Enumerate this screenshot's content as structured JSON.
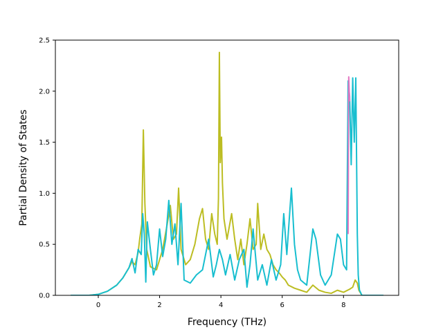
{
  "chart_data": {
    "type": "line",
    "title": "",
    "xlabel": "Frequency (THz)",
    "ylabel": "Partial Density of States",
    "xlim": [
      -1.4,
      9.8
    ],
    "ylim": [
      0,
      2.5
    ],
    "xticks": [
      0,
      2,
      4,
      6,
      8
    ],
    "yticks": [
      0.0,
      0.5,
      1.0,
      1.5,
      2.0,
      2.5
    ],
    "xtick_labels": [
      "0",
      "2",
      "4",
      "6",
      "8"
    ],
    "ytick_labels": [
      "0.0",
      "0.5",
      "1.0",
      "1.5",
      "2.0",
      "2.5"
    ],
    "grid": false,
    "legend": false,
    "series": [
      {
        "color": "#bcbd22",
        "x": [
          -0.9,
          -0.3,
          0.0,
          0.3,
          0.6,
          0.8,
          1.0,
          1.1,
          1.2,
          1.3,
          1.35,
          1.42,
          1.47,
          1.52,
          1.58,
          1.7,
          1.9,
          2.1,
          2.25,
          2.35,
          2.45,
          2.55,
          2.62,
          2.7,
          2.85,
          3.0,
          3.15,
          3.3,
          3.4,
          3.5,
          3.6,
          3.7,
          3.8,
          3.88,
          3.92,
          3.95,
          3.98,
          4.02,
          4.05,
          4.1,
          4.2,
          4.35,
          4.45,
          4.55,
          4.65,
          4.75,
          4.85,
          4.95,
          5.05,
          5.15,
          5.2,
          5.3,
          5.4,
          5.5,
          5.6,
          5.7,
          5.8,
          5.9,
          6.0,
          6.1,
          6.2,
          6.4,
          6.6,
          6.8,
          7.0,
          7.2,
          7.4,
          7.6,
          7.8,
          8.0,
          8.2,
          8.3,
          8.38,
          8.45,
          8.5,
          8.6,
          9.3
        ],
        "y": [
          0.0,
          0.0,
          0.01,
          0.04,
          0.1,
          0.17,
          0.27,
          0.33,
          0.3,
          0.42,
          0.55,
          0.7,
          1.62,
          0.9,
          0.45,
          0.28,
          0.25,
          0.45,
          0.7,
          0.88,
          0.55,
          0.6,
          1.05,
          0.45,
          0.3,
          0.35,
          0.5,
          0.75,
          0.85,
          0.55,
          0.45,
          0.8,
          0.6,
          0.5,
          0.95,
          2.38,
          1.3,
          1.55,
          1.1,
          0.75,
          0.55,
          0.8,
          0.55,
          0.35,
          0.55,
          0.3,
          0.5,
          0.75,
          0.45,
          0.5,
          0.9,
          0.45,
          0.6,
          0.45,
          0.4,
          0.3,
          0.25,
          0.22,
          0.18,
          0.15,
          0.1,
          0.07,
          0.05,
          0.03,
          0.1,
          0.05,
          0.03,
          0.02,
          0.05,
          0.03,
          0.06,
          0.08,
          0.15,
          0.12,
          0.05,
          0.0,
          0.0
        ]
      },
      {
        "color": "#17becf",
        "x": [
          -0.9,
          -0.3,
          0.0,
          0.3,
          0.6,
          0.8,
          1.0,
          1.1,
          1.2,
          1.3,
          1.4,
          1.45,
          1.5,
          1.55,
          1.6,
          1.7,
          1.8,
          1.9,
          2.0,
          2.1,
          2.2,
          2.3,
          2.4,
          2.5,
          2.6,
          2.7,
          2.8,
          3.0,
          3.2,
          3.4,
          3.6,
          3.75,
          3.85,
          3.95,
          4.05,
          4.15,
          4.3,
          4.45,
          4.6,
          4.75,
          4.85,
          4.95,
          5.05,
          5.2,
          5.35,
          5.5,
          5.65,
          5.8,
          5.95,
          6.05,
          6.15,
          6.3,
          6.4,
          6.5,
          6.6,
          6.8,
          7.0,
          7.1,
          7.25,
          7.4,
          7.6,
          7.8,
          7.9,
          8.0,
          8.1,
          8.15,
          8.2,
          8.25,
          8.3,
          8.35,
          8.4,
          8.45,
          8.48,
          8.52,
          8.6,
          9.3
        ],
        "y": [
          0.0,
          0.0,
          0.01,
          0.04,
          0.1,
          0.17,
          0.27,
          0.36,
          0.22,
          0.45,
          0.4,
          0.8,
          0.6,
          0.13,
          0.72,
          0.45,
          0.2,
          0.3,
          0.65,
          0.38,
          0.55,
          0.93,
          0.5,
          0.7,
          0.3,
          0.9,
          0.15,
          0.12,
          0.2,
          0.25,
          0.55,
          0.18,
          0.3,
          0.45,
          0.35,
          0.2,
          0.4,
          0.15,
          0.35,
          0.45,
          0.08,
          0.3,
          0.65,
          0.15,
          0.3,
          0.1,
          0.35,
          0.15,
          0.3,
          0.8,
          0.4,
          1.05,
          0.5,
          0.25,
          0.15,
          0.1,
          0.65,
          0.55,
          0.2,
          0.1,
          0.2,
          0.6,
          0.55,
          0.3,
          0.25,
          2.1,
          1.95,
          1.28,
          2.13,
          1.5,
          2.13,
          0.6,
          0.2,
          0.05,
          0.0,
          0.0
        ]
      },
      {
        "color": "#e377c2",
        "x": [
          8.15,
          8.17,
          8.2
        ],
        "y": [
          0.6,
          2.14,
          1.9
        ]
      }
    ]
  }
}
